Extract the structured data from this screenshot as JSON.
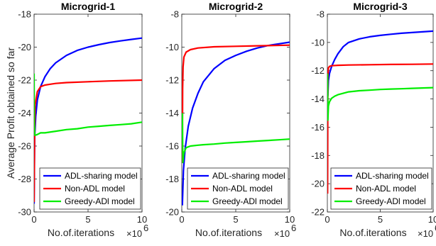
{
  "chart_data": [
    {
      "type": "line",
      "title": "Microgrid-1",
      "xlabel": "No.of.iterations",
      "ylabel": "Average Profit obtained so far",
      "x_multiplier_label": "×10",
      "x_multiplier_exp": "6",
      "xlim": [
        0,
        10
      ],
      "ylim": [
        -30,
        -18
      ],
      "xticks": [
        0,
        5,
        10
      ],
      "xtick_labels": [
        "0",
        "5",
        "10"
      ],
      "yticks": [
        -30,
        -28,
        -26,
        -24,
        -22,
        -20,
        -18
      ],
      "ytick_labels": [
        "-30",
        "-28",
        "-26",
        "-24",
        "-22",
        "-20",
        "-18"
      ],
      "legend_position": "bottom-right",
      "series": [
        {
          "name": "ADL-sharing model",
          "color": "#0000ff",
          "x": [
            0,
            0.05,
            0.15,
            0.3,
            0.6,
            1,
            1.5,
            2,
            3,
            4,
            5,
            6,
            7,
            8,
            9,
            10
          ],
          "y": [
            -29.5,
            -25.5,
            -24.2,
            -23.2,
            -22.4,
            -21.8,
            -21.3,
            -20.95,
            -20.5,
            -20.2,
            -20.0,
            -19.85,
            -19.72,
            -19.62,
            -19.53,
            -19.45
          ]
        },
        {
          "name": "Non-ADL model",
          "color": "#ff0000",
          "x": [
            0,
            0.05,
            0.1,
            0.3,
            0.6,
            1,
            1.5,
            2,
            3,
            5,
            7,
            10
          ],
          "y": [
            -29.4,
            -25.0,
            -23.5,
            -22.7,
            -22.4,
            -22.3,
            -22.25,
            -22.2,
            -22.15,
            -22.1,
            -22.05,
            -22.0
          ]
        },
        {
          "name": "Greedy-ADl model",
          "color": "#00ee00",
          "x": [
            0,
            0.02,
            0.05,
            0.1,
            0.3,
            0.6,
            1,
            2,
            3,
            4,
            5,
            6,
            7,
            8,
            9,
            10
          ],
          "y": [
            -21.6,
            -24.5,
            -25.3,
            -25.35,
            -25.3,
            -25.2,
            -25.2,
            -25.1,
            -25.0,
            -24.95,
            -24.85,
            -24.8,
            -24.75,
            -24.7,
            -24.65,
            -24.55
          ]
        }
      ]
    },
    {
      "type": "line",
      "title": "Microgrid-2",
      "xlabel": "No.of.iterations",
      "ylabel": "",
      "x_multiplier_label": "×10",
      "x_multiplier_exp": "6",
      "xlim": [
        0,
        10
      ],
      "ylim": [
        -20,
        -8
      ],
      "xticks": [
        0,
        5,
        10
      ],
      "xtick_labels": [
        "0",
        "5",
        "10"
      ],
      "yticks": [
        -20,
        -18,
        -16,
        -14,
        -12,
        -10,
        -8
      ],
      "ytick_labels": [
        "-20",
        "-18",
        "-16",
        "-14",
        "-12",
        "-10",
        "-8"
      ],
      "legend_position": "bottom-right",
      "series": [
        {
          "name": "ADL-sharing model",
          "color": "#0000ff",
          "x": [
            0.05,
            0.15,
            0.3,
            0.6,
            1,
            1.5,
            2,
            3,
            4,
            5,
            6,
            7,
            8,
            9,
            10
          ],
          "y": [
            -19.6,
            -17.5,
            -16.2,
            -14.8,
            -13.7,
            -12.8,
            -12.1,
            -11.3,
            -10.8,
            -10.5,
            -10.25,
            -10.05,
            -9.9,
            -9.8,
            -9.7
          ]
        },
        {
          "name": "Non-ADL model",
          "color": "#ff0000",
          "x": [
            0.05,
            0.08,
            0.12,
            0.2,
            0.4,
            0.8,
            1.5,
            3,
            5,
            7,
            10
          ],
          "y": [
            -17.0,
            -12.5,
            -11.2,
            -10.6,
            -10.3,
            -10.15,
            -10.05,
            -9.98,
            -9.95,
            -9.92,
            -9.88
          ]
        },
        {
          "name": "Greedy-ADl model",
          "color": "#00ee00",
          "x": [
            0.05,
            0.1,
            0.2,
            0.4,
            0.8,
            1.5,
            2,
            3,
            4,
            5,
            6,
            7,
            8,
            9,
            10
          ],
          "y": [
            -14.0,
            -17.0,
            -16.4,
            -16.1,
            -16.0,
            -15.95,
            -15.92,
            -15.88,
            -15.82,
            -15.78,
            -15.74,
            -15.7,
            -15.66,
            -15.62,
            -15.58
          ]
        }
      ]
    },
    {
      "type": "line",
      "title": "Microgrid-3",
      "xlabel": "No.of.iterations",
      "ylabel": "",
      "x_multiplier_label": "×10",
      "x_multiplier_exp": "6",
      "xlim": [
        0,
        10
      ],
      "ylim": [
        -22,
        -8
      ],
      "xticks": [
        0,
        5,
        10
      ],
      "xtick_labels": [
        "0",
        "5",
        "10"
      ],
      "yticks": [
        -22,
        -20,
        -18,
        -16,
        -14,
        -12,
        -10,
        -8
      ],
      "ytick_labels": [
        "-22",
        "-20",
        "-18",
        "-16",
        "-14",
        "-12",
        "-10",
        "-8"
      ],
      "legend_position": "bottom-right",
      "series": [
        {
          "name": "ADL-sharing model",
          "color": "#0000ff",
          "x": [
            0.05,
            0.1,
            0.2,
            0.4,
            0.7,
            1,
            1.5,
            2,
            3,
            4,
            5,
            6,
            7,
            8,
            9,
            10
          ],
          "y": [
            -13.8,
            -12.7,
            -12.2,
            -11.7,
            -11.2,
            -10.8,
            -10.3,
            -10.0,
            -9.75,
            -9.6,
            -9.5,
            -9.42,
            -9.35,
            -9.3,
            -9.25,
            -9.2
          ]
        },
        {
          "name": "Non-ADL model",
          "color": "#ff0000",
          "x": [
            0.02,
            0.05,
            0.1,
            0.2,
            0.4,
            1,
            2,
            4,
            6,
            8,
            10
          ],
          "y": [
            -20.7,
            -12.5,
            -11.8,
            -11.7,
            -11.65,
            -11.62,
            -11.6,
            -11.58,
            -11.56,
            -11.55,
            -11.53
          ]
        },
        {
          "name": "Greedy-ADl model",
          "color": "#00ee00",
          "x": [
            0.02,
            0.05,
            0.1,
            0.2,
            0.4,
            0.7,
            1,
            1.5,
            2,
            3,
            4,
            5,
            6,
            7,
            8,
            10
          ],
          "y": [
            -12.2,
            -15.5,
            -14.5,
            -14.2,
            -13.95,
            -13.8,
            -13.7,
            -13.6,
            -13.5,
            -13.42,
            -13.38,
            -13.33,
            -13.3,
            -13.28,
            -13.25,
            -13.2
          ]
        }
      ]
    }
  ]
}
